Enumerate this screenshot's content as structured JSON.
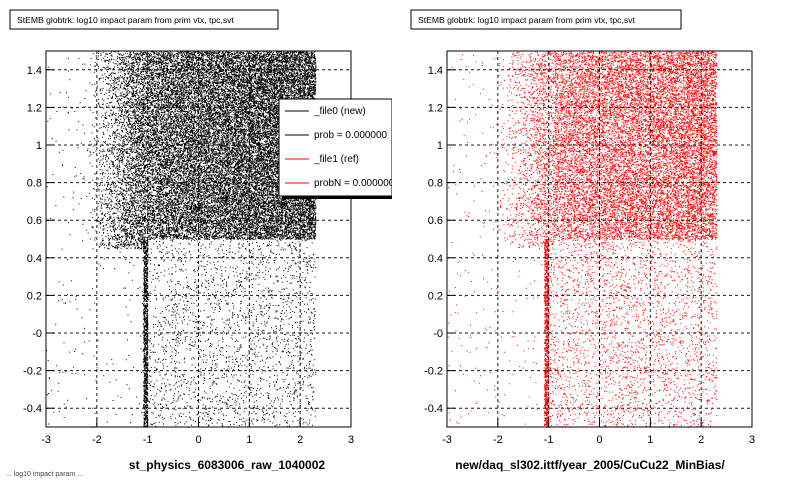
{
  "chart_data": [
    {
      "type": "scatter",
      "title": "StEMB globtrk: log10 impact param from prim vtx, tpc,svt",
      "xlabel": "st_physics_6083006_raw_1040002",
      "ylabel": "",
      "xlim": [
        -3,
        3
      ],
      "ylim": [
        -0.5,
        1.5
      ],
      "x_ticks": [
        "-3",
        "-2",
        "-1",
        "0",
        "1",
        "2",
        "3"
      ],
      "y_ticks": [
        "-0.4",
        "-0.2",
        "-0",
        "0.2",
        "0.4",
        "0.6",
        "0.8",
        "1",
        "1.2",
        "1.4"
      ],
      "grid": true,
      "marker_color": "#000000",
      "dense_region": {
        "x": [
          -1.0,
          2.3
        ],
        "y": [
          0.5,
          1.5
        ]
      },
      "sparse_region": {
        "x": [
          -1.1,
          2.3
        ],
        "y": [
          -0.5,
          0.5
        ]
      },
      "legend": {
        "placement": "top-right",
        "entries": [
          {
            "label": "_file0 (new)",
            "color": "#000000"
          },
          {
            "label": "prob = 0.000000",
            "color": "#000000"
          },
          {
            "label": "_file1 (ref)",
            "color": "#ff0000"
          },
          {
            "label": "probN = 0.000000",
            "color": "#ff0000"
          }
        ]
      }
    },
    {
      "type": "scatter",
      "title": "StEMB globtrk: log10 impact param from prim vtx, tpc,svt",
      "xlabel": "new/daq_sl302.ittf/year_2005/CuCu22_MinBias/",
      "ylabel": "",
      "xlim": [
        -3,
        3
      ],
      "ylim": [
        -0.5,
        1.5
      ],
      "x_ticks": [
        "-3",
        "-2",
        "-1",
        "0",
        "1",
        "2",
        "3"
      ],
      "y_ticks": [
        "-0.4",
        "-0.2",
        "-0",
        "0.2",
        "0.4",
        "0.6",
        "0.8",
        "1",
        "1.2",
        "1.4"
      ],
      "grid": true,
      "marker_color": "#ff0000",
      "dense_region": {
        "x": [
          -0.9,
          2.3
        ],
        "y": [
          0.5,
          1.5
        ]
      },
      "sparse_region": {
        "x": [
          -1.1,
          2.3
        ],
        "y": [
          -0.5,
          0.5
        ]
      }
    }
  ],
  "footer": {
    "text": "... log10 impact param ..."
  }
}
